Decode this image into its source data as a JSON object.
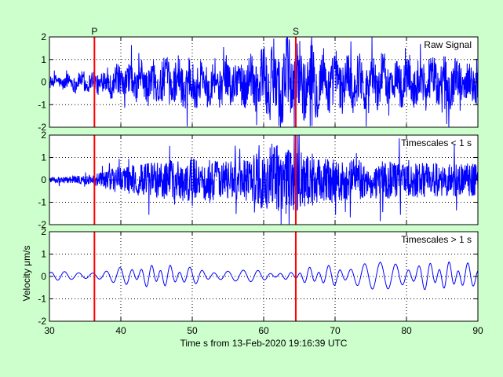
{
  "figure": {
    "background": "#ccffcc",
    "axes_background": "#ffffff",
    "xlabel": "Time s from 13-Feb-2020 19:16:39 UTC",
    "ylabel": "Velocity μm/s",
    "xlim": [
      30,
      90
    ],
    "x_ticks": [
      "30",
      "40",
      "50",
      "60",
      "70",
      "80",
      "90"
    ],
    "y_ticks": [
      "-2",
      "-1",
      "0",
      "1",
      "2"
    ]
  },
  "chart_data": [
    {
      "type": "line",
      "title": "Raw Signal",
      "xlim": [
        30,
        90
      ],
      "ylim": [
        -2,
        2
      ],
      "grid": true,
      "series_color": "#0000ff",
      "markers": [
        {
          "label": "P",
          "x": 36.3,
          "color": "#ff0000"
        },
        {
          "label": "S",
          "x": 64.5,
          "color": "#ff0000"
        }
      ],
      "envelope": {
        "note_style": "noisy broadband seismic trace",
        "x": [
          30,
          36,
          40,
          45,
          50,
          55,
          58,
          60,
          62,
          64,
          66,
          70,
          75,
          80,
          85,
          90
        ],
        "amplitude": [
          0.25,
          0.45,
          0.7,
          0.95,
          1.05,
          0.95,
          1.05,
          1.5,
          1.9,
          1.9,
          1.5,
          1.2,
          1.1,
          1.05,
          1.0,
          0.9
        ]
      }
    },
    {
      "type": "line",
      "title": "Timescales < 1 s",
      "xlim": [
        30,
        90
      ],
      "ylim": [
        -2,
        2
      ],
      "grid": true,
      "series_color": "#0000ff",
      "markers": [
        {
          "label": "",
          "x": 36.3,
          "color": "#ff0000"
        },
        {
          "label": "",
          "x": 64.5,
          "color": "#ff0000"
        }
      ],
      "envelope": {
        "note_style": "high-frequency component",
        "x": [
          30,
          36,
          40,
          45,
          50,
          55,
          58,
          60,
          62,
          64,
          66,
          70,
          75,
          80,
          85,
          90
        ],
        "amplitude": [
          0.12,
          0.25,
          0.7,
          0.9,
          1.1,
          0.95,
          1.1,
          1.5,
          1.75,
          1.7,
          1.4,
          1.05,
          0.95,
          0.9,
          0.85,
          0.8
        ]
      }
    },
    {
      "type": "line",
      "title": "Timescales > 1 s",
      "xlim": [
        30,
        90
      ],
      "ylim": [
        -2,
        2
      ],
      "grid": true,
      "series_color": "#0000ff",
      "markers": [
        {
          "label": "",
          "x": 36.3,
          "color": "#ff0000"
        },
        {
          "label": "",
          "x": 64.5,
          "color": "#ff0000"
        }
      ],
      "envelope": {
        "note_style": "smooth low-frequency component",
        "x": [
          30,
          36,
          40,
          45,
          50,
          55,
          58,
          60,
          62,
          64,
          66,
          70,
          75,
          80,
          85,
          90
        ],
        "amplitude": [
          0.15,
          0.3,
          0.35,
          0.5,
          0.35,
          0.3,
          0.25,
          0.2,
          0.15,
          0.15,
          0.35,
          0.45,
          0.55,
          0.55,
          0.6,
          0.5
        ]
      }
    }
  ]
}
